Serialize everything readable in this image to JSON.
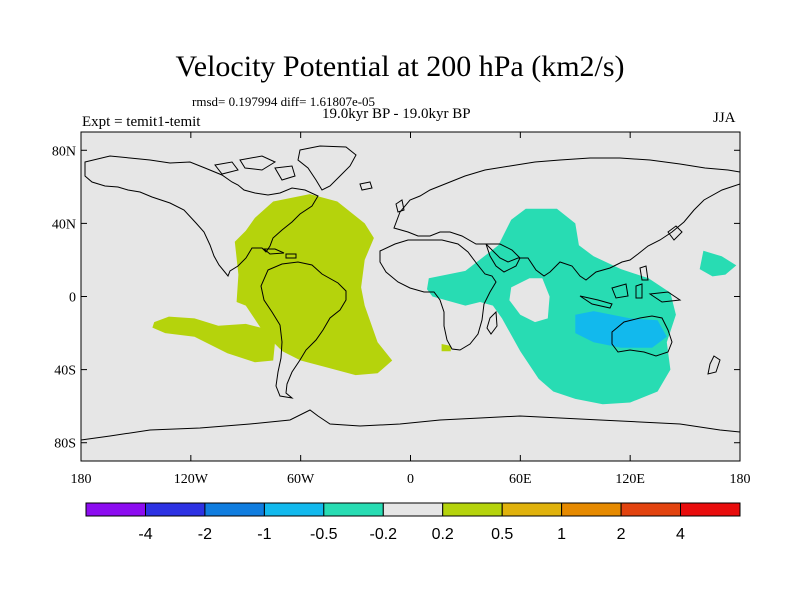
{
  "title": "Velocity Potential at 200 hPa (km2/s)",
  "stats": "rmsd= 0.197994 diff= 1.61807e-05",
  "subtitle": "19.0kyr BP - 19.0kyr BP",
  "expt": "Expt = temit1-temit",
  "season": "JJA",
  "map": {
    "projection": "cylindrical-equidistant",
    "lon_range": [
      -180,
      180
    ],
    "lat_range": [
      -90,
      90
    ],
    "lat_ticks": [
      {
        "value": 80,
        "label": "80N"
      },
      {
        "value": 40,
        "label": "40N"
      },
      {
        "value": 0,
        "label": "0"
      },
      {
        "value": -40,
        "label": "40S"
      },
      {
        "value": -80,
        "label": "80S"
      }
    ],
    "lon_ticks": [
      {
        "value": -180,
        "label": "180"
      },
      {
        "value": -120,
        "label": "120W"
      },
      {
        "value": -60,
        "label": "60W"
      },
      {
        "value": 0,
        "label": "0"
      },
      {
        "value": 60,
        "label": "60E"
      },
      {
        "value": 120,
        "label": "120E"
      },
      {
        "value": 180,
        "label": "180"
      }
    ],
    "background_color": "#e6e6e6",
    "regions": [
      {
        "name": "atlantic-americas-positive-region",
        "bin": "0.2 to 0.5",
        "color": "#b5d30c",
        "outline": [
          [
            -90,
            36
          ],
          [
            -85,
            43
          ],
          [
            -75,
            52
          ],
          [
            -55,
            56
          ],
          [
            -40,
            52
          ],
          [
            -25,
            40
          ],
          [
            -20,
            32
          ],
          [
            -25,
            20
          ],
          [
            -27,
            5
          ],
          [
            -25,
            -5
          ],
          [
            -18,
            -25
          ],
          [
            -10,
            -35
          ],
          [
            -18,
            -42
          ],
          [
            -30,
            -43
          ],
          [
            -45,
            -39
          ],
          [
            -60,
            -35
          ],
          [
            -70,
            -30
          ],
          [
            -80,
            -20
          ],
          [
            -90,
            -5
          ],
          [
            -95,
            -3
          ],
          [
            -94,
            12
          ],
          [
            -96,
            30
          ]
        ]
      },
      {
        "name": "south-pacific-positive-region",
        "bin": "0.2 to 0.5",
        "color": "#b5d30c",
        "outline": [
          [
            -140,
            -14
          ],
          [
            -132,
            -11
          ],
          [
            -118,
            -12
          ],
          [
            -105,
            -16
          ],
          [
            -90,
            -15
          ],
          [
            -78,
            -18
          ],
          [
            -74,
            -25
          ],
          [
            -75,
            -35
          ],
          [
            -85,
            -36
          ],
          [
            -100,
            -31
          ],
          [
            -118,
            -22
          ],
          [
            -134,
            -20
          ],
          [
            -141,
            -17
          ]
        ]
      },
      {
        "name": "south-africa-positive-region",
        "bin": "0.2 to 0.5",
        "color": "#b5d30c",
        "outline": [
          [
            17,
            -26
          ],
          [
            22,
            -27
          ],
          [
            22,
            -30
          ],
          [
            17,
            -30
          ]
        ]
      },
      {
        "name": "indo-pacific-negative-region",
        "bin": "-0.5 to -0.2",
        "color": "#28dcb3",
        "outline": [
          [
            10,
            10
          ],
          [
            30,
            14
          ],
          [
            48,
            28
          ],
          [
            55,
            42
          ],
          [
            63,
            48
          ],
          [
            80,
            48
          ],
          [
            90,
            40
          ],
          [
            92,
            28
          ],
          [
            100,
            22
          ],
          [
            115,
            15
          ],
          [
            130,
            10
          ],
          [
            142,
            2
          ],
          [
            145,
            -10
          ],
          [
            140,
            -25
          ],
          [
            142,
            -40
          ],
          [
            135,
            -52
          ],
          [
            120,
            -58
          ],
          [
            105,
            -59
          ],
          [
            90,
            -56
          ],
          [
            78,
            -52
          ],
          [
            70,
            -45
          ],
          [
            60,
            -30
          ],
          [
            50,
            -12
          ],
          [
            45,
            -5
          ],
          [
            38,
            -3
          ],
          [
            30,
            -5
          ],
          [
            12,
            0
          ],
          [
            9,
            4
          ]
        ]
      },
      {
        "name": "west-pacific-negative-region",
        "bin": "-0.5 to -0.2",
        "color": "#28dcb3",
        "outline": [
          [
            160,
            25
          ],
          [
            170,
            22
          ],
          [
            178,
            17
          ],
          [
            172,
            12
          ],
          [
            165,
            11
          ],
          [
            158,
            15
          ]
        ]
      },
      {
        "name": "maritime-continent-core-region",
        "bin": "-1 to -0.5",
        "color": "#12b9ed",
        "outline": [
          [
            90,
            -10
          ],
          [
            100,
            -8
          ],
          [
            120,
            -12
          ],
          [
            135,
            -13
          ],
          [
            140,
            -22
          ],
          [
            132,
            -28
          ],
          [
            115,
            -28
          ],
          [
            100,
            -25
          ],
          [
            90,
            -20
          ]
        ]
      },
      {
        "name": "arabian-sea-gap-region",
        "bin": "0.2 to -0.2",
        "color": "#e6e6e6",
        "outline": [
          [
            55,
            5
          ],
          [
            65,
            10
          ],
          [
            72,
            10
          ],
          [
            76,
            0
          ],
          [
            75,
            -12
          ],
          [
            68,
            -14
          ],
          [
            60,
            -10
          ],
          [
            54,
            -2
          ]
        ]
      }
    ]
  },
  "colorbar": {
    "colors": [
      "#8c0cf0",
      "#2d32e3",
      "#107ddf",
      "#12b9ed",
      "#28dcb3",
      "#e6e6e6",
      "#b5d30c",
      "#e0b20c",
      "#e68a00",
      "#e2430f",
      "#e80c0c"
    ],
    "labels": [
      "-4",
      "-2",
      "-1",
      "-0.5",
      "-0.2",
      "0.2",
      "0.5",
      "1",
      "2",
      "4"
    ]
  }
}
